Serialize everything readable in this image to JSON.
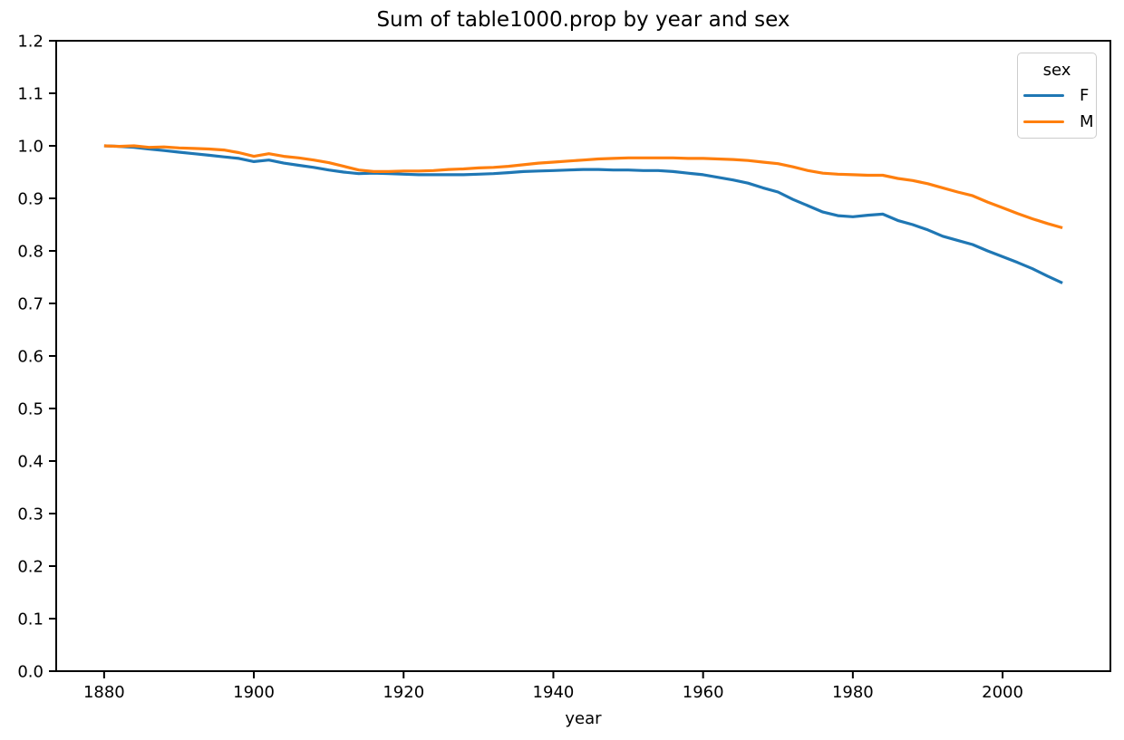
{
  "chart_data": {
    "type": "line",
    "title": "Sum of table1000.prop by year and sex",
    "xlabel": "year",
    "ylabel": "",
    "xlim": [
      1873.6,
      2014.4
    ],
    "ylim": [
      0.0,
      1.2
    ],
    "xticks": [
      1880,
      1900,
      1920,
      1940,
      1960,
      1980,
      2000
    ],
    "ytick_labels": [
      "0.0",
      "0.1",
      "0.2",
      "0.3",
      "0.4",
      "0.5",
      "0.6",
      "0.7",
      "0.8",
      "0.9",
      "1.0",
      "1.1",
      "1.2"
    ],
    "grid": false,
    "legend": {
      "title": "sex",
      "position": "upper right",
      "entries": [
        "F",
        "M"
      ]
    },
    "x": [
      1880,
      1882,
      1884,
      1886,
      1888,
      1890,
      1892,
      1894,
      1896,
      1898,
      1900,
      1902,
      1904,
      1906,
      1908,
      1910,
      1912,
      1914,
      1916,
      1918,
      1920,
      1922,
      1924,
      1926,
      1928,
      1930,
      1932,
      1934,
      1936,
      1938,
      1940,
      1942,
      1944,
      1946,
      1948,
      1950,
      1952,
      1954,
      1956,
      1958,
      1960,
      1962,
      1964,
      1966,
      1968,
      1970,
      1972,
      1974,
      1976,
      1978,
      1980,
      1982,
      1984,
      1986,
      1988,
      1990,
      1992,
      1994,
      1996,
      1998,
      2000,
      2002,
      2004,
      2006,
      2008
    ],
    "series": [
      {
        "name": "F",
        "color": "#1f77b4",
        "values": [
          1.0,
          0.999,
          0.997,
          0.994,
          0.991,
          0.988,
          0.985,
          0.982,
          0.979,
          0.976,
          0.97,
          0.973,
          0.967,
          0.963,
          0.959,
          0.954,
          0.95,
          0.947,
          0.948,
          0.947,
          0.946,
          0.945,
          0.945,
          0.945,
          0.945,
          0.946,
          0.947,
          0.949,
          0.951,
          0.952,
          0.953,
          0.954,
          0.955,
          0.955,
          0.954,
          0.954,
          0.953,
          0.953,
          0.951,
          0.948,
          0.945,
          0.94,
          0.935,
          0.929,
          0.92,
          0.912,
          0.898,
          0.886,
          0.874,
          0.867,
          0.865,
          0.868,
          0.87,
          0.858,
          0.85,
          0.84,
          0.828,
          0.82,
          0.812,
          0.8,
          0.789,
          0.778,
          0.766,
          0.752,
          0.739
        ]
      },
      {
        "name": "M",
        "color": "#ff7f0e",
        "values": [
          1.0,
          0.999,
          1.0,
          0.997,
          0.998,
          0.996,
          0.995,
          0.994,
          0.992,
          0.987,
          0.98,
          0.985,
          0.98,
          0.977,
          0.973,
          0.968,
          0.961,
          0.954,
          0.951,
          0.951,
          0.952,
          0.952,
          0.953,
          0.955,
          0.956,
          0.958,
          0.959,
          0.961,
          0.964,
          0.967,
          0.969,
          0.971,
          0.973,
          0.975,
          0.976,
          0.977,
          0.977,
          0.977,
          0.977,
          0.976,
          0.976,
          0.975,
          0.974,
          0.972,
          0.969,
          0.966,
          0.96,
          0.953,
          0.948,
          0.946,
          0.945,
          0.944,
          0.944,
          0.938,
          0.934,
          0.928,
          0.92,
          0.912,
          0.905,
          0.893,
          0.882,
          0.871,
          0.861,
          0.852,
          0.844
        ]
      }
    ]
  }
}
